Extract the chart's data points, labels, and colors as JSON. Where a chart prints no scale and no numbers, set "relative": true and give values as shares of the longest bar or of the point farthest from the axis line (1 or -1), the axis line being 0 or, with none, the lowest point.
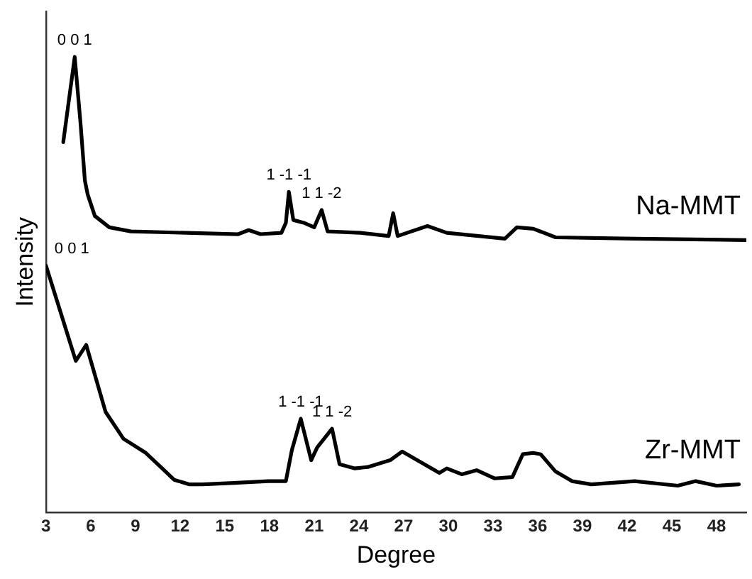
{
  "chart_data": {
    "type": "line",
    "xlabel": "Degree",
    "ylabel": "Intensity",
    "relative": true,
    "xlim": [
      3,
      50
    ],
    "xticks": [
      3,
      6,
      9,
      12,
      15,
      18,
      21,
      24,
      27,
      30,
      33,
      36,
      39,
      42,
      45,
      48
    ],
    "grid": false,
    "legend": false,
    "marker": "none",
    "line_style": "solid",
    "series": [
      {
        "name": "Na-MMT",
        "color": "#000000",
        "x": [
          4.16,
          4.93,
          5.32,
          5.61,
          5.8,
          6.28,
          7.25,
          8.7,
          15.9,
          16.6,
          17.4,
          18.8,
          19.1,
          19.3,
          19.6,
          20.3,
          21.0,
          21.5,
          21.9,
          24.1,
          26.0,
          26.3,
          26.6,
          28.6,
          29.9,
          33.8,
          34.6,
          35.7,
          37.2,
          42.5,
          50
        ],
        "values": [
          0.813,
          1,
          0.854,
          0.729,
          0.698,
          0.651,
          0.626,
          0.617,
          0.611,
          0.62,
          0.611,
          0.614,
          0.636,
          0.704,
          0.642,
          0.636,
          0.626,
          0.664,
          0.617,
          0.614,
          0.607,
          0.657,
          0.607,
          0.629,
          0.614,
          0.601,
          0.626,
          0.623,
          0.604,
          0.601,
          0.598
        ]
      },
      {
        "name": "Zr-MMT",
        "color": "#000000",
        "x": [
          3,
          5.0,
          5.7,
          7.0,
          8.2,
          9.7,
          10.8,
          11.6,
          12.6,
          13.5,
          15.6,
          17.9,
          19.1,
          19.5,
          20.1,
          20.8,
          21.2,
          22.2,
          22.7,
          23.7,
          24.6,
          26.1,
          26.9,
          29.4,
          29.9,
          30.9,
          31.9,
          33.1,
          34.3,
          35.0,
          35.7,
          36.2,
          37.2,
          38.3,
          39.6,
          42.5,
          45.4,
          46.6,
          48.0,
          49.5
        ],
        "values": [
          0.542,
          0.333,
          0.368,
          0.221,
          0.162,
          0.131,
          0.097,
          0.072,
          0.062,
          0.062,
          0.065,
          0.069,
          0.069,
          0.137,
          0.206,
          0.115,
          0.143,
          0.184,
          0.106,
          0.097,
          0.1,
          0.115,
          0.134,
          0.087,
          0.097,
          0.084,
          0.093,
          0.075,
          0.078,
          0.128,
          0.131,
          0.128,
          0.09,
          0.069,
          0.062,
          0.069,
          0.059,
          0.069,
          0.059,
          0.062
        ]
      }
    ],
    "annotations": [
      {
        "text": "0 0 1",
        "x": 4.93,
        "y": 1
      },
      {
        "text": "1 -1 -1",
        "x": 19.3,
        "y": 0.704
      },
      {
        "text": "1 1 -2",
        "x": 21.5,
        "y": 0.664
      },
      {
        "text": "0 0 1",
        "x": 3,
        "y": 0.542
      },
      {
        "text": "1 -1 -1",
        "x": 20.1,
        "y": 0.206
      },
      {
        "text": "1 1 -2",
        "x": 22.2,
        "y": 0.184
      }
    ]
  }
}
